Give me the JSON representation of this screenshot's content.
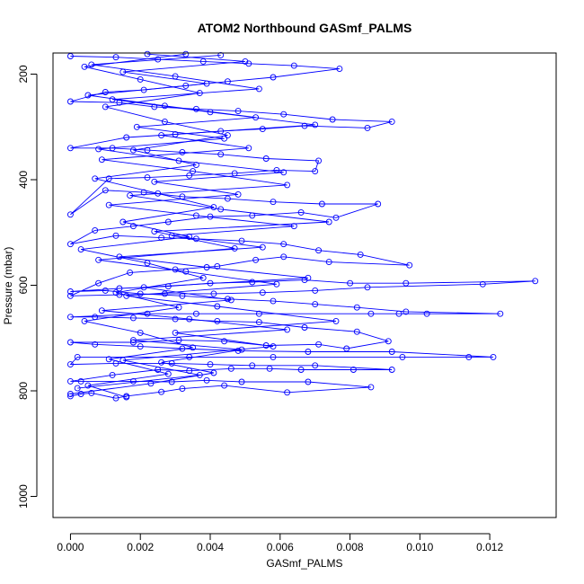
{
  "chart_data": {
    "type": "scatter",
    "title": "ATOM2 Northbound GASmf_PALMS",
    "xlabel": "GASmf_PALMS",
    "ylabel": "Pressure (mbar)",
    "xlim": [
      -0.0005,
      0.0139
    ],
    "ylim": [
      1040,
      160
    ],
    "y_reversed": true,
    "grid": false,
    "x_ticks": [
      0.0,
      0.002,
      0.004,
      0.006,
      0.008,
      0.01,
      0.012
    ],
    "x_tick_labels": [
      "0.000",
      "0.002",
      "0.004",
      "0.006",
      "0.008",
      "0.010",
      "0.012"
    ],
    "y_ticks": [
      200,
      400,
      600,
      800,
      1000
    ],
    "y_tick_labels": [
      "200",
      "400",
      "600",
      "800",
      "1000"
    ],
    "colors": {
      "series": "#0000ff",
      "axes": "#000000"
    },
    "series": [
      {
        "style": "line+open-circle",
        "points": [
          [
            0.0,
            810
          ],
          [
            0.0003,
            806
          ],
          [
            0.0006,
            804
          ],
          [
            0.0013,
            814
          ],
          [
            0.0016,
            810
          ],
          [
            0.0026,
            802
          ],
          [
            0.0032,
            796
          ],
          [
            0.0044,
            790
          ],
          [
            0.0062,
            803
          ],
          [
            0.0086,
            793
          ],
          [
            0.0068,
            783
          ],
          [
            0.0049,
            783
          ],
          [
            0.0039,
            780
          ],
          [
            0.0029,
            783
          ],
          [
            0.0018,
            782
          ],
          [
            0.0003,
            782
          ],
          [
            0.0,
            782
          ],
          [
            0.0012,
            770
          ],
          [
            0.0025,
            760
          ],
          [
            0.0034,
            762
          ],
          [
            0.0046,
            758
          ],
          [
            0.0057,
            758
          ],
          [
            0.0066,
            760
          ],
          [
            0.0081,
            760
          ],
          [
            0.0092,
            760
          ],
          [
            0.007,
            752
          ],
          [
            0.0052,
            752
          ],
          [
            0.004,
            750
          ],
          [
            0.0029,
            748
          ],
          [
            0.0013,
            748
          ],
          [
            0.0,
            750
          ],
          [
            0.0002,
            736
          ],
          [
            0.0034,
            736
          ],
          [
            0.0058,
            736
          ],
          [
            0.0095,
            736
          ],
          [
            0.0114,
            736
          ],
          [
            0.0121,
            736
          ],
          [
            0.0092,
            726
          ],
          [
            0.0068,
            726
          ],
          [
            0.0048,
            724
          ],
          [
            0.0032,
            720
          ],
          [
            0.002,
            716
          ],
          [
            0.0007,
            712
          ],
          [
            0.0,
            708
          ],
          [
            0.0018,
            708
          ],
          [
            0.0031,
            704
          ],
          [
            0.0044,
            706
          ],
          [
            0.0056,
            714
          ],
          [
            0.0071,
            712
          ],
          [
            0.0079,
            720
          ],
          [
            0.0091,
            706
          ],
          [
            0.0082,
            688
          ],
          [
            0.0067,
            680
          ],
          [
            0.0054,
            670
          ],
          [
            0.0042,
            668
          ],
          [
            0.003,
            664
          ],
          [
            0.0018,
            662
          ],
          [
            0.0007,
            660
          ],
          [
            0.0,
            660
          ],
          [
            0.0022,
            654
          ],
          [
            0.0036,
            654
          ],
          [
            0.0054,
            654
          ],
          [
            0.0086,
            654
          ],
          [
            0.0094,
            654
          ],
          [
            0.0102,
            654
          ],
          [
            0.0123,
            654
          ],
          [
            0.0096,
            650
          ],
          [
            0.0082,
            642
          ],
          [
            0.007,
            636
          ],
          [
            0.0058,
            630
          ],
          [
            0.0045,
            626
          ],
          [
            0.0032,
            620
          ],
          [
            0.002,
            616
          ],
          [
            0.001,
            610
          ],
          [
            0.0,
            612
          ],
          [
            0.0014,
            606
          ],
          [
            0.0028,
            602
          ],
          [
            0.004,
            596
          ],
          [
            0.0052,
            594
          ],
          [
            0.0067,
            590
          ],
          [
            0.008,
            596
          ],
          [
            0.0096,
            596
          ],
          [
            0.0133,
            592
          ],
          [
            0.0118,
            598
          ],
          [
            0.0085,
            604
          ],
          [
            0.007,
            610
          ],
          [
            0.0055,
            614
          ],
          [
            0.0041,
            616
          ],
          [
            0.0027,
            616
          ],
          [
            0.0014,
            618
          ],
          [
            0.0,
            620
          ],
          [
            0.0008,
            596
          ],
          [
            0.0017,
            576
          ],
          [
            0.003,
            570
          ],
          [
            0.0042,
            564
          ],
          [
            0.0053,
            552
          ],
          [
            0.0061,
            546
          ],
          [
            0.0074,
            556
          ],
          [
            0.0097,
            562
          ],
          [
            0.0083,
            542
          ],
          [
            0.0071,
            534
          ],
          [
            0.0061,
            522
          ],
          [
            0.0049,
            516
          ],
          [
            0.0036,
            512
          ],
          [
            0.0026,
            510
          ],
          [
            0.0013,
            506
          ],
          [
            0.0,
            522
          ],
          [
            0.0007,
            496
          ],
          [
            0.0018,
            488
          ],
          [
            0.0028,
            480
          ],
          [
            0.004,
            470
          ],
          [
            0.0052,
            468
          ],
          [
            0.0066,
            462
          ],
          [
            0.0076,
            472
          ],
          [
            0.0088,
            446
          ],
          [
            0.0072,
            446
          ],
          [
            0.0058,
            442
          ],
          [
            0.0045,
            436
          ],
          [
            0.0032,
            432
          ],
          [
            0.0021,
            424
          ],
          [
            0.001,
            420
          ],
          [
            0.0,
            466
          ],
          [
            0.0011,
            398
          ],
          [
            0.0022,
            396
          ],
          [
            0.0034,
            392
          ],
          [
            0.0047,
            388
          ],
          [
            0.0059,
            382
          ],
          [
            0.007,
            384
          ],
          [
            0.0071,
            364
          ],
          [
            0.0056,
            360
          ],
          [
            0.0043,
            352
          ],
          [
            0.0032,
            348
          ],
          [
            0.0022,
            344
          ],
          [
            0.0012,
            340
          ],
          [
            0.0,
            340
          ],
          [
            0.0016,
            320
          ],
          [
            0.003,
            314
          ],
          [
            0.0043,
            308
          ],
          [
            0.0055,
            304
          ],
          [
            0.0067,
            298
          ],
          [
            0.0085,
            302
          ],
          [
            0.0092,
            290
          ],
          [
            0.0075,
            286
          ],
          [
            0.0061,
            276
          ],
          [
            0.0048,
            270
          ],
          [
            0.0036,
            266
          ],
          [
            0.0024,
            262
          ],
          [
            0.0014,
            254
          ],
          [
            0.0,
            252
          ],
          [
            0.001,
            234
          ],
          [
            0.0021,
            230
          ],
          [
            0.0033,
            222
          ],
          [
            0.0045,
            214
          ],
          [
            0.0058,
            206
          ],
          [
            0.0077,
            190
          ],
          [
            0.0064,
            184
          ],
          [
            0.0051,
            180
          ],
          [
            0.0038,
            176
          ],
          [
            0.0025,
            172
          ],
          [
            0.0013,
            168
          ],
          [
            0.0,
            166
          ]
        ]
      },
      {
        "style": "line+open-circle",
        "points": [
          [
            0.0,
            806
          ],
          [
            0.0023,
            786
          ],
          [
            0.0041,
            766
          ],
          [
            0.0026,
            746
          ],
          [
            0.0049,
            722
          ],
          [
            0.0018,
            704
          ],
          [
            0.0062,
            684
          ],
          [
            0.0034,
            664
          ],
          [
            0.0009,
            648
          ],
          [
            0.0046,
            628
          ],
          [
            0.0021,
            604
          ],
          [
            0.0068,
            586
          ],
          [
            0.0039,
            566
          ],
          [
            0.0014,
            546
          ],
          [
            0.0055,
            528
          ],
          [
            0.0029,
            506
          ],
          [
            0.0064,
            488
          ],
          [
            0.0036,
            468
          ],
          [
            0.0011,
            448
          ],
          [
            0.0048,
            428
          ],
          [
            0.0024,
            404
          ],
          [
            0.0061,
            386
          ],
          [
            0.0031,
            364
          ],
          [
            0.0008,
            342
          ],
          [
            0.0044,
            322
          ],
          [
            0.0019,
            300
          ],
          [
            0.0053,
            282
          ],
          [
            0.0027,
            260
          ],
          [
            0.0005,
            240
          ],
          [
            0.0039,
            218
          ],
          [
            0.0015,
            196
          ],
          [
            0.005,
            176
          ],
          [
            0.0022,
            162
          ]
        ]
      },
      {
        "style": "line+open-circle",
        "points": [
          [
            0.0002,
            795
          ],
          [
            0.0037,
            770
          ],
          [
            0.0015,
            742
          ],
          [
            0.0058,
            716
          ],
          [
            0.003,
            690
          ],
          [
            0.0076,
            668
          ],
          [
            0.0042,
            640
          ],
          [
            0.0016,
            620
          ],
          [
            0.0059,
            598
          ],
          [
            0.0033,
            574
          ],
          [
            0.0008,
            552
          ],
          [
            0.0047,
            530
          ],
          [
            0.0024,
            498
          ],
          [
            0.0074,
            480
          ],
          [
            0.0043,
            456
          ],
          [
            0.0017,
            430
          ],
          [
            0.0062,
            410
          ],
          [
            0.0035,
            384
          ],
          [
            0.0009,
            362
          ],
          [
            0.0051,
            340
          ],
          [
            0.0026,
            316
          ],
          [
            0.007,
            296
          ],
          [
            0.004,
            272
          ],
          [
            0.0012,
            248
          ],
          [
            0.0054,
            228
          ],
          [
            0.003,
            204
          ],
          [
            0.0006,
            182
          ],
          [
            0.0043,
            164
          ]
        ]
      },
      {
        "style": "line+open-circle",
        "points": [
          [
            0.0016,
            812
          ],
          [
            0.0005,
            790
          ],
          [
            0.0028,
            768
          ],
          [
            0.0011,
            740
          ],
          [
            0.0035,
            718
          ],
          [
            0.002,
            690
          ],
          [
            0.0004,
            668
          ],
          [
            0.0031,
            642
          ],
          [
            0.0013,
            614
          ],
          [
            0.0038,
            586
          ],
          [
            0.0022,
            558
          ],
          [
            0.0003,
            532
          ],
          [
            0.0034,
            508
          ],
          [
            0.0015,
            480
          ],
          [
            0.0041,
            452
          ],
          [
            0.0025,
            426
          ],
          [
            0.0007,
            398
          ],
          [
            0.0036,
            372
          ],
          [
            0.0018,
            344
          ],
          [
            0.0045,
            316
          ],
          [
            0.0027,
            290
          ],
          [
            0.001,
            262
          ],
          [
            0.0037,
            236
          ],
          [
            0.002,
            210
          ],
          [
            0.0004,
            186
          ],
          [
            0.0033,
            162
          ]
        ]
      }
    ]
  }
}
